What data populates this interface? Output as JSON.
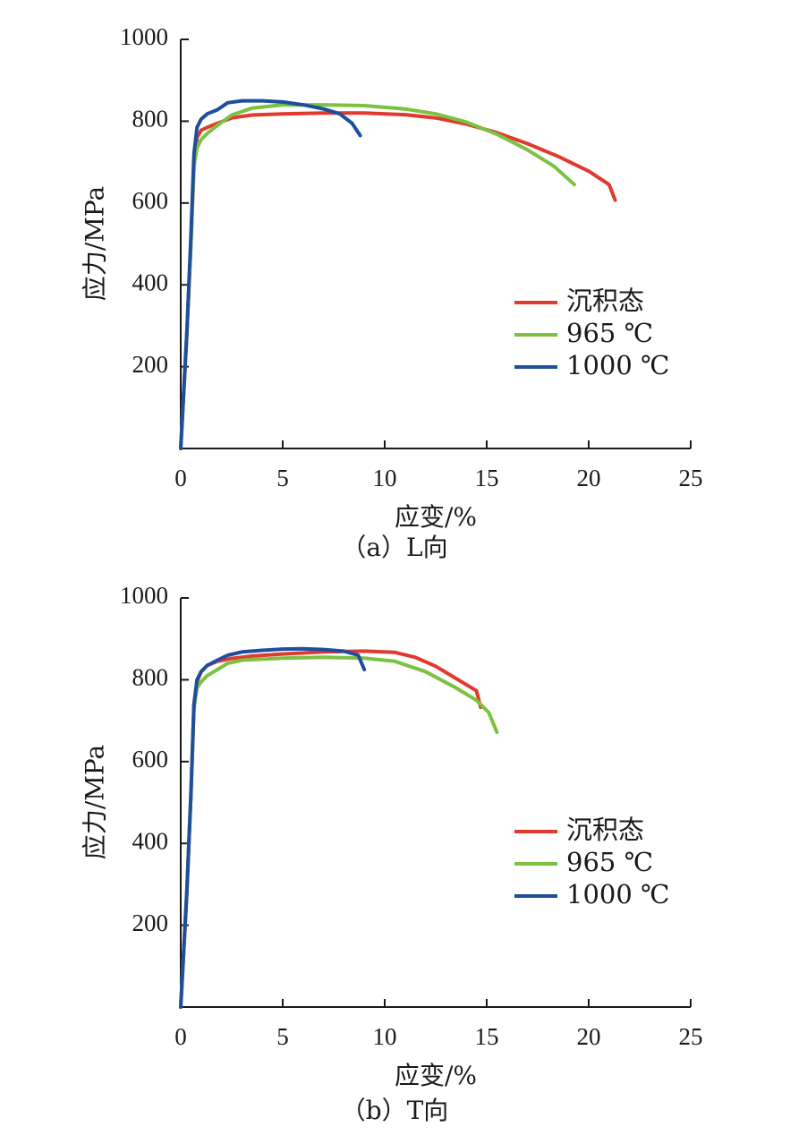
{
  "chart_data": [
    {
      "type": "line",
      "caption": "（a）L向",
      "xlabel": "应变/%",
      "ylabel": "应力/MPa",
      "xlim": [
        0,
        25
      ],
      "ylim": [
        0,
        1000
      ],
      "xticks": [
        0,
        5,
        10,
        15,
        20,
        25
      ],
      "yticks": [
        200,
        400,
        600,
        800,
        1000
      ],
      "legend_position": "right",
      "series": [
        {
          "name": "沉积态",
          "color": "#e03a2f",
          "x": [
            0,
            0.3,
            0.5,
            0.65,
            0.8,
            1.0,
            1.3,
            1.8,
            2.5,
            3.5,
            5,
            7,
            9,
            11,
            12.5,
            14,
            15.5,
            17,
            18.5,
            20,
            21,
            21.3
          ],
          "y": [
            0,
            280,
            500,
            690,
            760,
            778,
            785,
            795,
            808,
            815,
            818,
            820,
            820,
            816,
            808,
            793,
            772,
            745,
            714,
            678,
            645,
            607
          ]
        },
        {
          "name": "965 ℃",
          "color": "#7cc142",
          "x": [
            0,
            0.3,
            0.5,
            0.65,
            0.8,
            1.0,
            1.3,
            1.8,
            2.5,
            3.5,
            5,
            7,
            9,
            11,
            12.5,
            14,
            15.5,
            17,
            18.3,
            19.3
          ],
          "y": [
            0,
            280,
            500,
            690,
            735,
            755,
            770,
            790,
            815,
            832,
            840,
            840,
            838,
            830,
            818,
            798,
            768,
            730,
            690,
            645
          ]
        },
        {
          "name": "1000 ℃",
          "color": "#1f4e9c",
          "x": [
            0,
            0.3,
            0.5,
            0.65,
            0.8,
            1.0,
            1.3,
            1.8,
            2.3,
            3,
            4,
            5,
            6,
            7,
            7.8,
            8.4,
            8.8
          ],
          "y": [
            0,
            280,
            520,
            720,
            785,
            805,
            818,
            828,
            845,
            850,
            850,
            847,
            840,
            830,
            818,
            795,
            765
          ]
        }
      ]
    },
    {
      "type": "line",
      "caption": "（b）T向",
      "xlabel": "应变/%",
      "ylabel": "应力/MPa",
      "xlim": [
        0,
        25
      ],
      "ylim": [
        0,
        1000
      ],
      "xticks": [
        0,
        5,
        10,
        15,
        20,
        25
      ],
      "yticks": [
        200,
        400,
        600,
        800,
        1000
      ],
      "legend_position": "right",
      "series": [
        {
          "name": "沉积态",
          "color": "#e03a2f",
          "x": [
            0,
            0.3,
            0.5,
            0.65,
            0.8,
            1.0,
            1.3,
            1.8,
            2.5,
            3.5,
            5,
            7,
            9,
            10.5,
            11.5,
            12.5,
            13.5,
            14.5,
            14.7
          ],
          "y": [
            0,
            280,
            520,
            740,
            795,
            820,
            835,
            845,
            852,
            858,
            863,
            868,
            870,
            867,
            855,
            833,
            803,
            773,
            733
          ]
        },
        {
          "name": "965 ℃",
          "color": "#7cc142",
          "x": [
            0,
            0.3,
            0.5,
            0.65,
            0.8,
            1.0,
            1.3,
            1.8,
            2.3,
            3,
            5,
            7,
            9,
            10.5,
            12,
            13.5,
            14.5,
            15.1,
            15.5
          ],
          "y": [
            0,
            280,
            520,
            730,
            780,
            795,
            810,
            825,
            840,
            848,
            853,
            855,
            853,
            845,
            820,
            780,
            750,
            720,
            672
          ]
        },
        {
          "name": "1000 ℃",
          "color": "#1f4e9c",
          "x": [
            0,
            0.3,
            0.5,
            0.65,
            0.8,
            1.0,
            1.3,
            1.8,
            2.3,
            3,
            4,
            5,
            6,
            7,
            8,
            8.7,
            9.0
          ],
          "y": [
            0,
            280,
            520,
            740,
            800,
            820,
            835,
            848,
            860,
            868,
            872,
            875,
            876,
            874,
            870,
            860,
            825
          ]
        }
      ]
    }
  ]
}
